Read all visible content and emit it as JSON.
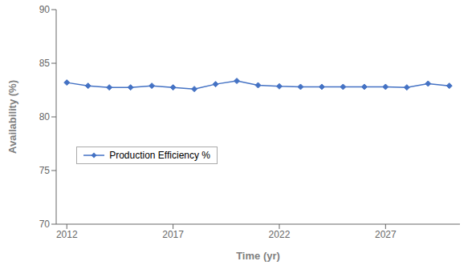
{
  "chart_data": {
    "type": "line",
    "x": [
      2012,
      2013,
      2014,
      2015,
      2016,
      2017,
      2018,
      2019,
      2020,
      2021,
      2022,
      2023,
      2024,
      2025,
      2026,
      2027,
      2028,
      2029,
      2030
    ],
    "series": [
      {
        "name": "Production Efficiency %",
        "color": "#4472C4",
        "marker": "diamond",
        "values": [
          83.2,
          82.9,
          82.75,
          82.75,
          82.9,
          82.75,
          82.6,
          83.05,
          83.35,
          82.95,
          82.85,
          82.8,
          82.8,
          82.8,
          82.8,
          82.8,
          82.75,
          83.1,
          82.9
        ]
      }
    ],
    "xlabel": "Time (yr)",
    "ylabel": "Availability (%)",
    "xlim": [
      2011.5,
      2030.5
    ],
    "xticks": [
      2012,
      2017,
      2022,
      2027
    ],
    "ylim": [
      70,
      90
    ],
    "yticks": [
      70,
      75,
      80,
      85,
      90
    ],
    "grid": false,
    "legend": "lower left"
  }
}
